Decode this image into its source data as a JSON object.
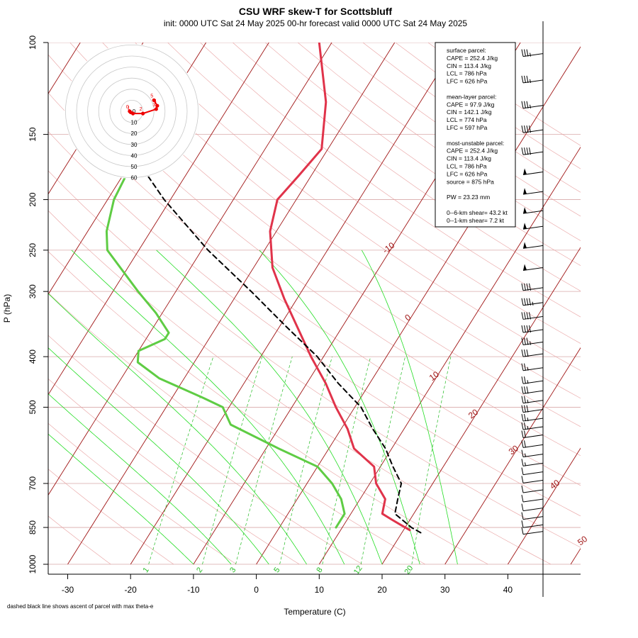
{
  "chart_data": {
    "type": "line",
    "title": "CSU WRF skew-T for Scottsbluff",
    "subtitle": "init: 0000 UTC Sat 24 May 2025    00-hr forecast valid 0000 UTC Sat 24 May 2025",
    "xlabel": "Temperature (C)",
    "ylabel": "P (hPa)",
    "x_ticks": [
      "-30",
      "-20",
      "-10",
      "0",
      "10",
      "20",
      "30",
      "40"
    ],
    "y_ticks": [
      "100",
      "150",
      "200",
      "250",
      "300",
      "400",
      "500",
      "700",
      "850",
      "1000"
    ],
    "ylim": [
      1000,
      100
    ],
    "x_range": [
      -33,
      51
    ],
    "note": "dashed black line shows ascent of parcel with max theta-e",
    "colors": {
      "temperature": "#e0334a",
      "dewpoint": "#5fcc44",
      "parcel": "#000000",
      "isotherm": "#a01515",
      "dry_adiabat": "#e8a0a0",
      "moist_adiabat": "#22dd22",
      "mixing_ratio": "#22bb22",
      "hodograph": "#ee0000"
    },
    "isotherm_labels": [
      "-10",
      "0",
      "10",
      "20",
      "30",
      "40",
      "50"
    ],
    "mixing_ratio_labels": [
      "1",
      "2",
      "3",
      "5",
      "8",
      "12",
      "20"
    ],
    "series": [
      {
        "name": "",
        "role": "temperature",
        "points": [
          [
            100,
            -42
          ],
          [
            130,
            -35
          ],
          [
            160,
            -31
          ],
          [
            180,
            -32
          ],
          [
            200,
            -33
          ],
          [
            230,
            -31
          ],
          [
            270,
            -27
          ],
          [
            310,
            -22
          ],
          [
            400,
            -12
          ],
          [
            450,
            -7
          ],
          [
            500,
            -3
          ],
          [
            550,
            1
          ],
          [
            600,
            4
          ],
          [
            650,
            9
          ],
          [
            700,
            11
          ],
          [
            750,
            14
          ],
          [
            800,
            15
          ],
          [
            820,
            17
          ],
          [
            840,
            19
          ],
          [
            860,
            21
          ]
        ]
      },
      {
        "name": "",
        "role": "dewpoint",
        "points": [
          [
            160,
            -60
          ],
          [
            200,
            -59
          ],
          [
            230,
            -57
          ],
          [
            250,
            -55
          ],
          [
            300,
            -46
          ],
          [
            330,
            -41
          ],
          [
            360,
            -37
          ],
          [
            370,
            -37
          ],
          [
            390,
            -40
          ],
          [
            410,
            -39
          ],
          [
            440,
            -34
          ],
          [
            480,
            -25
          ],
          [
            500,
            -21
          ],
          [
            540,
            -18
          ],
          [
            600,
            -8
          ],
          [
            650,
            0
          ],
          [
            700,
            4
          ],
          [
            750,
            7
          ],
          [
            800,
            9
          ],
          [
            830,
            9
          ],
          [
            850,
            9
          ]
        ]
      },
      {
        "name": "",
        "role": "parcel",
        "points": [
          [
            870,
            23
          ],
          [
            850,
            21
          ],
          [
            800,
            17
          ],
          [
            750,
            16
          ],
          [
            700,
            15
          ],
          [
            650,
            12
          ],
          [
            600,
            9
          ],
          [
            550,
            5
          ],
          [
            500,
            1
          ],
          [
            450,
            -5
          ],
          [
            400,
            -11
          ],
          [
            350,
            -19
          ],
          [
            300,
            -28
          ],
          [
            250,
            -39
          ],
          [
            200,
            -51
          ],
          [
            180,
            -56
          ]
        ]
      }
    ],
    "wind_barbs": [
      {
        "p": 105,
        "speed_kt": 35
      },
      {
        "p": 118,
        "speed_kt": 35
      },
      {
        "p": 132,
        "speed_kt": 35
      },
      {
        "p": 147,
        "speed_kt": 40
      },
      {
        "p": 162,
        "speed_kt": 40
      },
      {
        "p": 177,
        "speed_kt": 50
      },
      {
        "p": 193,
        "speed_kt": 50
      },
      {
        "p": 210,
        "speed_kt": 50
      },
      {
        "p": 225,
        "speed_kt": 50
      },
      {
        "p": 245,
        "speed_kt": 50
      },
      {
        "p": 270,
        "speed_kt": 50
      },
      {
        "p": 295,
        "speed_kt": 40
      },
      {
        "p": 315,
        "speed_kt": 45
      },
      {
        "p": 335,
        "speed_kt": 40
      },
      {
        "p": 355,
        "speed_kt": 40
      },
      {
        "p": 375,
        "speed_kt": 35
      },
      {
        "p": 395,
        "speed_kt": 30
      },
      {
        "p": 420,
        "speed_kt": 25
      },
      {
        "p": 445,
        "speed_kt": 25
      },
      {
        "p": 465,
        "speed_kt": 30
      },
      {
        "p": 485,
        "speed_kt": 25
      },
      {
        "p": 505,
        "speed_kt": 30
      },
      {
        "p": 525,
        "speed_kt": 25
      },
      {
        "p": 545,
        "speed_kt": 25
      },
      {
        "p": 565,
        "speed_kt": 20
      },
      {
        "p": 590,
        "speed_kt": 20
      },
      {
        "p": 615,
        "speed_kt": 15
      },
      {
        "p": 640,
        "speed_kt": 15
      },
      {
        "p": 665,
        "speed_kt": 10
      },
      {
        "p": 690,
        "speed_kt": 10
      },
      {
        "p": 720,
        "speed_kt": 10
      },
      {
        "p": 750,
        "speed_kt": 10
      },
      {
        "p": 780,
        "speed_kt": 10
      },
      {
        "p": 810,
        "speed_kt": 10
      },
      {
        "p": 840,
        "speed_kt": 10
      },
      {
        "p": 865,
        "speed_kt": 10
      }
    ],
    "hodograph": {
      "ring_labels": [
        "0",
        "10",
        "20",
        "30",
        "40",
        "50",
        "60"
      ],
      "point_labels": [
        "0",
        "1",
        "2",
        "3",
        "4",
        "5"
      ],
      "points_kt": [
        [
          -2,
          0
        ],
        [
          -1,
          -1
        ],
        [
          1,
          -2
        ],
        [
          10,
          -2
        ],
        [
          22,
          2
        ],
        [
          23,
          5
        ],
        [
          20,
          10
        ]
      ]
    },
    "parcel_info": {
      "lines": [
        "surface parcel:",
        "CAPE = 252.4 J/kg",
        "CIN = 113.4 J/kg",
        "LCL = 786 hPa",
        "LFC = 626 hPa",
        "",
        "mean-layer parcel:",
        "CAPE = 97.9 J/kg",
        "CIN = 142.1 J/kg",
        "LCL = 774 hPa",
        "LFC = 597 hPa",
        "",
        "most-unstable parcel:",
        "CAPE = 252.4 J/kg",
        "CIN = 113.4 J/kg",
        "LCL = 786 hPa",
        "LFC = 626 hPa",
        "source = 875 hPa",
        "",
        "PW =  23.23 mm",
        "",
        "0--6-km shear= 43.2 kt",
        "0--1-km shear= 7.2 kt"
      ]
    }
  }
}
